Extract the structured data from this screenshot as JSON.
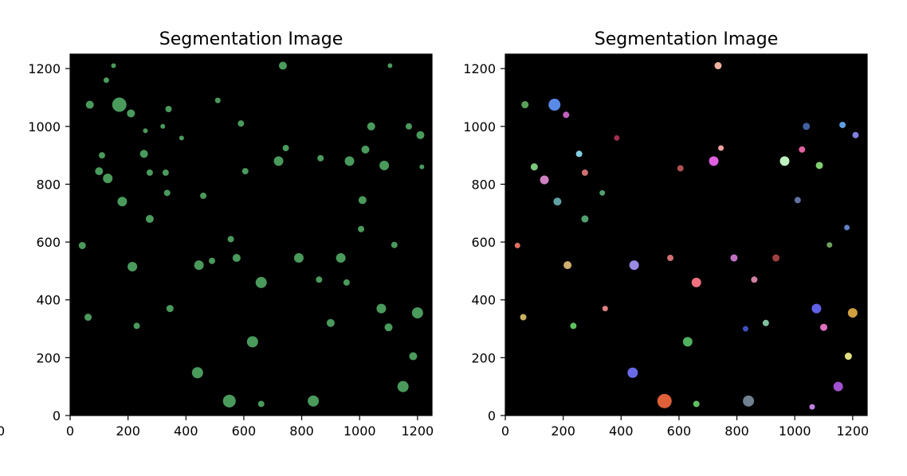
{
  "stray_label": "0",
  "chart_data": [
    {
      "type": "scatter",
      "title": "Segmentation Image",
      "xlim": [
        0,
        1250
      ],
      "ylim": [
        0,
        1250
      ],
      "xticks": [
        0,
        200,
        400,
        600,
        800,
        1000,
        1200
      ],
      "yticks": [
        0,
        200,
        400,
        600,
        800,
        1000,
        1200
      ],
      "background": "#000000",
      "default_color": "#4a9a5c",
      "grid": false,
      "points": [
        {
          "x": 42,
          "y": 588,
          "s": 9
        },
        {
          "x": 62,
          "y": 340,
          "s": 9
        },
        {
          "x": 68,
          "y": 1075,
          "s": 10
        },
        {
          "x": 100,
          "y": 845,
          "s": 10
        },
        {
          "x": 110,
          "y": 900,
          "s": 8
        },
        {
          "x": 125,
          "y": 1160,
          "s": 7
        },
        {
          "x": 130,
          "y": 820,
          "s": 12
        },
        {
          "x": 150,
          "y": 1210,
          "s": 6
        },
        {
          "x": 170,
          "y": 1075,
          "s": 18
        },
        {
          "x": 180,
          "y": 740,
          "s": 12
        },
        {
          "x": 210,
          "y": 1045,
          "s": 10
        },
        {
          "x": 215,
          "y": 515,
          "s": 12
        },
        {
          "x": 230,
          "y": 310,
          "s": 8
        },
        {
          "x": 255,
          "y": 905,
          "s": 10
        },
        {
          "x": 260,
          "y": 985,
          "s": 6
        },
        {
          "x": 275,
          "y": 680,
          "s": 10
        },
        {
          "x": 275,
          "y": 840,
          "s": 8
        },
        {
          "x": 320,
          "y": 1000,
          "s": 6
        },
        {
          "x": 330,
          "y": 840,
          "s": 8
        },
        {
          "x": 335,
          "y": 770,
          "s": 8
        },
        {
          "x": 340,
          "y": 1060,
          "s": 8
        },
        {
          "x": 345,
          "y": 370,
          "s": 9
        },
        {
          "x": 385,
          "y": 960,
          "s": 6
        },
        {
          "x": 445,
          "y": 520,
          "s": 12
        },
        {
          "x": 440,
          "y": 148,
          "s": 14
        },
        {
          "x": 460,
          "y": 760,
          "s": 8
        },
        {
          "x": 490,
          "y": 535,
          "s": 8
        },
        {
          "x": 510,
          "y": 1090,
          "s": 7
        },
        {
          "x": 550,
          "y": 50,
          "s": 16
        },
        {
          "x": 555,
          "y": 610,
          "s": 8
        },
        {
          "x": 575,
          "y": 545,
          "s": 10
        },
        {
          "x": 590,
          "y": 1010,
          "s": 8
        },
        {
          "x": 605,
          "y": 845,
          "s": 8
        },
        {
          "x": 630,
          "y": 255,
          "s": 14
        },
        {
          "x": 660,
          "y": 460,
          "s": 14
        },
        {
          "x": 660,
          "y": 40,
          "s": 8
        },
        {
          "x": 720,
          "y": 880,
          "s": 12
        },
        {
          "x": 735,
          "y": 1210,
          "s": 10
        },
        {
          "x": 745,
          "y": 925,
          "s": 8
        },
        {
          "x": 790,
          "y": 545,
          "s": 12
        },
        {
          "x": 840,
          "y": 50,
          "s": 14
        },
        {
          "x": 860,
          "y": 470,
          "s": 8
        },
        {
          "x": 865,
          "y": 890,
          "s": 8
        },
        {
          "x": 900,
          "y": 320,
          "s": 10
        },
        {
          "x": 935,
          "y": 545,
          "s": 12
        },
        {
          "x": 955,
          "y": 460,
          "s": 8
        },
        {
          "x": 965,
          "y": 880,
          "s": 12
        },
        {
          "x": 1005,
          "y": 645,
          "s": 8
        },
        {
          "x": 1010,
          "y": 745,
          "s": 10
        },
        {
          "x": 1020,
          "y": 920,
          "s": 10
        },
        {
          "x": 1040,
          "y": 1000,
          "s": 10
        },
        {
          "x": 1075,
          "y": 370,
          "s": 12
        },
        {
          "x": 1085,
          "y": 865,
          "s": 12
        },
        {
          "x": 1100,
          "y": 305,
          "s": 10
        },
        {
          "x": 1105,
          "y": 1210,
          "s": 6
        },
        {
          "x": 1120,
          "y": 590,
          "s": 8
        },
        {
          "x": 1150,
          "y": 100,
          "s": 14
        },
        {
          "x": 1170,
          "y": 1000,
          "s": 8
        },
        {
          "x": 1185,
          "y": 205,
          "s": 10
        },
        {
          "x": 1200,
          "y": 355,
          "s": 14
        },
        {
          "x": 1210,
          "y": 970,
          "s": 10
        },
        {
          "x": 1215,
          "y": 860,
          "s": 6
        }
      ]
    },
    {
      "type": "scatter",
      "title": "Segmentation Image",
      "xlim": [
        0,
        1250
      ],
      "ylim": [
        0,
        1250
      ],
      "xticks": [
        0,
        200,
        400,
        600,
        800,
        1000,
        1200
      ],
      "yticks": [
        0,
        200,
        400,
        600,
        800,
        1000,
        1200
      ],
      "background": "#000000",
      "grid": false,
      "points": [
        {
          "x": 42,
          "y": 588,
          "s": 7,
          "c": "#e07060"
        },
        {
          "x": 62,
          "y": 340,
          "s": 8,
          "c": "#c8b060"
        },
        {
          "x": 68,
          "y": 1075,
          "s": 9,
          "c": "#5aa05a"
        },
        {
          "x": 100,
          "y": 860,
          "s": 9,
          "c": "#7ac87a"
        },
        {
          "x": 135,
          "y": 815,
          "s": 11,
          "c": "#d080c0"
        },
        {
          "x": 170,
          "y": 1075,
          "s": 15,
          "c": "#5a8ae8"
        },
        {
          "x": 180,
          "y": 740,
          "s": 10,
          "c": "#60a0a0"
        },
        {
          "x": 210,
          "y": 1040,
          "s": 8,
          "c": "#c060c0"
        },
        {
          "x": 215,
          "y": 520,
          "s": 10,
          "c": "#d0b070"
        },
        {
          "x": 235,
          "y": 310,
          "s": 8,
          "c": "#60c060"
        },
        {
          "x": 255,
          "y": 905,
          "s": 8,
          "c": "#80d0e0"
        },
        {
          "x": 275,
          "y": 840,
          "s": 8,
          "c": "#d07070"
        },
        {
          "x": 275,
          "y": 680,
          "s": 9,
          "c": "#50a070"
        },
        {
          "x": 335,
          "y": 770,
          "s": 7,
          "c": "#50a070"
        },
        {
          "x": 345,
          "y": 370,
          "s": 7,
          "c": "#e08080"
        },
        {
          "x": 385,
          "y": 960,
          "s": 7,
          "c": "#a03050"
        },
        {
          "x": 445,
          "y": 520,
          "s": 12,
          "c": "#9a8ae0"
        },
        {
          "x": 440,
          "y": 148,
          "s": 13,
          "c": "#6a6ae8"
        },
        {
          "x": 550,
          "y": 50,
          "s": 18,
          "c": "#e0603a"
        },
        {
          "x": 570,
          "y": 545,
          "s": 8,
          "c": "#d07070"
        },
        {
          "x": 605,
          "y": 855,
          "s": 8,
          "c": "#b05050"
        },
        {
          "x": 630,
          "y": 255,
          "s": 12,
          "c": "#50b060"
        },
        {
          "x": 660,
          "y": 460,
          "s": 12,
          "c": "#f07080"
        },
        {
          "x": 660,
          "y": 40,
          "s": 8,
          "c": "#60c060"
        },
        {
          "x": 720,
          "y": 880,
          "s": 12,
          "c": "#e060e0"
        },
        {
          "x": 735,
          "y": 1210,
          "s": 9,
          "c": "#f0b0a0"
        },
        {
          "x": 745,
          "y": 925,
          "s": 7,
          "c": "#f0a0a0"
        },
        {
          "x": 790,
          "y": 545,
          "s": 9,
          "c": "#c070c0"
        },
        {
          "x": 840,
          "y": 50,
          "s": 14,
          "c": "#708090"
        },
        {
          "x": 860,
          "y": 470,
          "s": 8,
          "c": "#d080a0"
        },
        {
          "x": 900,
          "y": 320,
          "s": 8,
          "c": "#80c0a0"
        },
        {
          "x": 935,
          "y": 545,
          "s": 9,
          "c": "#a04040"
        },
        {
          "x": 965,
          "y": 880,
          "s": 12,
          "c": "#c0f0c0"
        },
        {
          "x": 1010,
          "y": 745,
          "s": 8,
          "c": "#6070a0"
        },
        {
          "x": 1025,
          "y": 920,
          "s": 8,
          "c": "#e060a0"
        },
        {
          "x": 1040,
          "y": 1000,
          "s": 9,
          "c": "#4060a0"
        },
        {
          "x": 1075,
          "y": 370,
          "s": 12,
          "c": "#6060e8"
        },
        {
          "x": 1085,
          "y": 865,
          "s": 9,
          "c": "#80d070"
        },
        {
          "x": 1100,
          "y": 305,
          "s": 9,
          "c": "#e070c0"
        },
        {
          "x": 1120,
          "y": 590,
          "s": 7,
          "c": "#70a060"
        },
        {
          "x": 1150,
          "y": 100,
          "s": 12,
          "c": "#a050d0"
        },
        {
          "x": 1165,
          "y": 1005,
          "s": 8,
          "c": "#60a0e0"
        },
        {
          "x": 1185,
          "y": 205,
          "s": 9,
          "c": "#e0e080"
        },
        {
          "x": 1200,
          "y": 355,
          "s": 12,
          "c": "#d0a040"
        },
        {
          "x": 1210,
          "y": 970,
          "s": 8,
          "c": "#8080e0"
        },
        {
          "x": 1060,
          "y": 30,
          "s": 7,
          "c": "#c080e0"
        },
        {
          "x": 1180,
          "y": 650,
          "s": 7,
          "c": "#6080c0"
        },
        {
          "x": 830,
          "y": 300,
          "s": 7,
          "c": "#4050c0"
        }
      ]
    }
  ]
}
